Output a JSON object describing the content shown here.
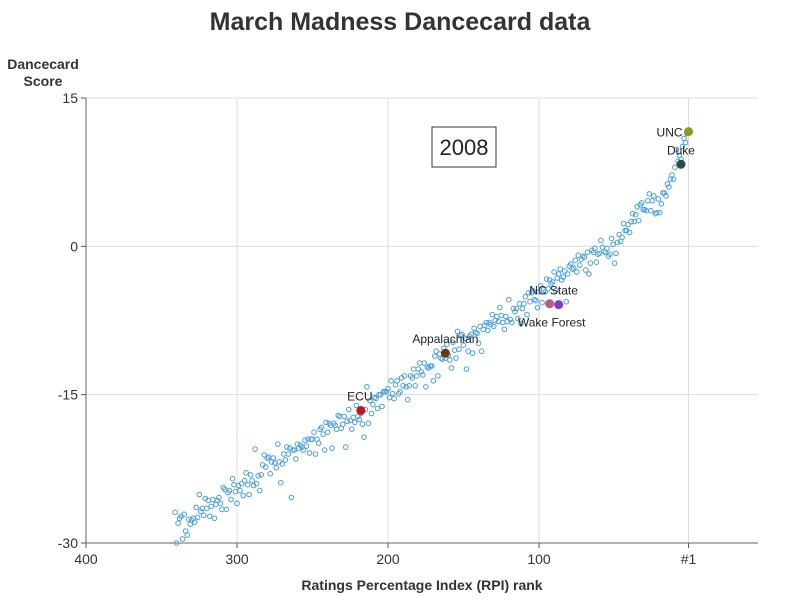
{
  "chart_data": {
    "type": "scatter",
    "title": "March Madness Dancecard data",
    "xlabel": "Ratings Percentage Index (RPI) rank",
    "ylabel_lines": [
      "Dancecard",
      "Score"
    ],
    "annotation": "2008",
    "xlim": [
      400,
      -45
    ],
    "ylim": [
      -30,
      15
    ],
    "x_ticks": [
      400,
      300,
      200,
      100,
      1
    ],
    "x_tick_labels": [
      "400",
      "300",
      "200",
      "100",
      "#1"
    ],
    "y_ticks": [
      15,
      0,
      -15,
      -30
    ],
    "y_tick_labels": [
      "15",
      "0",
      "-15",
      "-30"
    ],
    "grid": true,
    "point_color": "#4a9fe0",
    "points": [
      [
        341,
        -26.9
      ],
      [
        340,
        -30.0
      ],
      [
        339,
        -28.0
      ],
      [
        338,
        -27.5
      ],
      [
        337,
        -27.3
      ],
      [
        336,
        -29.6
      ],
      [
        335,
        -27.1
      ],
      [
        334,
        -28.8
      ],
      [
        333,
        -29.2
      ],
      [
        332,
        -27.6
      ],
      [
        331,
        -28.1
      ],
      [
        330,
        -27.7
      ],
      [
        329,
        -27.5
      ],
      [
        328,
        -27.9
      ],
      [
        327,
        -26.4
      ],
      [
        326,
        -27.4
      ],
      [
        325,
        -25.1
      ],
      [
        324,
        -26.8
      ],
      [
        323,
        -26.5
      ],
      [
        322,
        -27.2
      ],
      [
        321,
        -25.5
      ],
      [
        320,
        -26.5
      ],
      [
        319,
        -25.7
      ],
      [
        318,
        -27.3
      ],
      [
        317,
        -26.3
      ],
      [
        316,
        -25.6
      ],
      [
        315,
        -27.5
      ],
      [
        314,
        -26.1
      ],
      [
        313,
        -25.7
      ],
      [
        312,
        -25.4
      ],
      [
        311,
        -26.0
      ],
      [
        310,
        -26.6
      ],
      [
        309,
        -24.4
      ],
      [
        308,
        -24.6
      ],
      [
        307,
        -26.6
      ],
      [
        306,
        -24.9
      ],
      [
        305,
        -24.7
      ],
      [
        304,
        -25.6
      ],
      [
        303,
        -23.5
      ],
      [
        302,
        -24.1
      ],
      [
        301,
        -24.8
      ],
      [
        300,
        -26.0
      ],
      [
        299,
        -24.2
      ],
      [
        298,
        -24.7
      ],
      [
        297,
        -24.0
      ],
      [
        296,
        -25.2
      ],
      [
        295,
        -23.7
      ],
      [
        294,
        -22.9
      ],
      [
        293,
        -24.1
      ],
      [
        292,
        -25.1
      ],
      [
        291,
        -23.1
      ],
      [
        290,
        -23.7
      ],
      [
        289,
        -24.2
      ],
      [
        288,
        -20.5
      ],
      [
        287,
        -24.0
      ],
      [
        286,
        -23.2
      ],
      [
        285,
        -24.7
      ],
      [
        284,
        -23.1
      ],
      [
        283,
        -22.1
      ],
      [
        282,
        -21.1
      ],
      [
        281,
        -22.3
      ],
      [
        280,
        -21.4
      ],
      [
        279,
        -21.3
      ],
      [
        278,
        -23.0
      ],
      [
        277,
        -21.8
      ],
      [
        276,
        -21.4
      ],
      [
        275,
        -21.9
      ],
      [
        274,
        -22.4
      ],
      [
        273,
        -20.0
      ],
      [
        272,
        -21.8
      ],
      [
        271,
        -23.9
      ],
      [
        270,
        -22.0
      ],
      [
        269,
        -21.0
      ],
      [
        268,
        -21.6
      ],
      [
        267,
        -20.3
      ],
      [
        266,
        -21.0
      ],
      [
        265,
        -20.4
      ],
      [
        264,
        -25.4
      ],
      [
        263,
        -20.6
      ],
      [
        262,
        -20.6
      ],
      [
        261,
        -21.5
      ],
      [
        260,
        -20.0
      ],
      [
        259,
        -20.4
      ],
      [
        258,
        -20.1
      ],
      [
        257,
        -20.3
      ],
      [
        256,
        -20.6
      ],
      [
        255,
        -19.6
      ],
      [
        254,
        -20.2
      ],
      [
        253,
        -19.5
      ],
      [
        252,
        -20.9
      ],
      [
        251,
        -19.5
      ],
      [
        250,
        -19.5
      ],
      [
        249,
        -18.8
      ],
      [
        248,
        -21.0
      ],
      [
        247,
        -19.5
      ],
      [
        246,
        -19.9
      ],
      [
        245,
        -18.5
      ],
      [
        244,
        -18.3
      ],
      [
        243,
        -19.0
      ],
      [
        242,
        -20.6
      ],
      [
        241,
        -17.8
      ],
      [
        240,
        -18.8
      ],
      [
        239,
        -17.9
      ],
      [
        238,
        -18.1
      ],
      [
        237,
        -20.4
      ],
      [
        236,
        -17.9
      ],
      [
        235,
        -18.1
      ],
      [
        234,
        -18.5
      ],
      [
        233,
        -17.1
      ],
      [
        232,
        -17.2
      ],
      [
        231,
        -18.4
      ],
      [
        230,
        -18.0
      ],
      [
        229,
        -17.2
      ],
      [
        228,
        -20.3
      ],
      [
        227,
        -17.7
      ],
      [
        226,
        -16.5
      ],
      [
        225,
        -17.6
      ],
      [
        224,
        -18.5
      ],
      [
        223,
        -17.3
      ],
      [
        222,
        -17.8
      ],
      [
        221,
        -16.1
      ],
      [
        220,
        -17.2
      ],
      [
        219,
        -17.5
      ],
      [
        218,
        -16.9
      ],
      [
        217,
        -18.0
      ],
      [
        216,
        -19.3
      ],
      [
        215,
        -16.5
      ],
      [
        214,
        -14.2
      ],
      [
        213,
        -17.9
      ],
      [
        212,
        -15.6
      ],
      [
        211,
        -16.9
      ],
      [
        210,
        -16.0
      ],
      [
        209,
        -15.3
      ],
      [
        208,
        -15.4
      ],
      [
        207,
        -16.4
      ],
      [
        206,
        -15.0
      ],
      [
        205,
        -15.0
      ],
      [
        204,
        -16.2
      ],
      [
        203,
        -14.7
      ],
      [
        202,
        -14.7
      ],
      [
        201,
        -14.7
      ],
      [
        200,
        -14.4
      ],
      [
        199,
        -15.3
      ],
      [
        198,
        -13.6
      ],
      [
        197,
        -14.9
      ],
      [
        196,
        -15.4
      ],
      [
        195,
        -14.0
      ],
      [
        194,
        -13.6
      ],
      [
        193,
        -14.9
      ],
      [
        192,
        -14.7
      ],
      [
        191,
        -13.3
      ],
      [
        190,
        -14.1
      ],
      [
        189,
        -13.1
      ],
      [
        188,
        -14.2
      ],
      [
        187,
        -15.5
      ],
      [
        186,
        -14.1
      ],
      [
        185,
        -13.1
      ],
      [
        184,
        -13.3
      ],
      [
        183,
        -12.4
      ],
      [
        182,
        -14.1
      ],
      [
        181,
        -13.1
      ],
      [
        180,
        -12.4
      ],
      [
        179,
        -11.8
      ],
      [
        178,
        -12.7
      ],
      [
        177,
        -13.0
      ],
      [
        176,
        -11.8
      ],
      [
        175,
        -14.2
      ],
      [
        174,
        -12.2
      ],
      [
        173,
        -12.3
      ],
      [
        172,
        -12.1
      ],
      [
        171,
        -12.1
      ],
      [
        170,
        -13.6
      ],
      [
        169,
        -11.1
      ],
      [
        168,
        -10.6
      ],
      [
        167,
        -13.1
      ],
      [
        166,
        -10.9
      ],
      [
        165,
        -11.3
      ],
      [
        164,
        -11.4
      ],
      [
        163,
        -10.3
      ],
      [
        162,
        -11.3
      ],
      [
        161,
        -9.9
      ],
      [
        160,
        -11.0
      ],
      [
        159,
        -11.5
      ],
      [
        158,
        -12.3
      ],
      [
        157,
        -9.7
      ],
      [
        156,
        -10.5
      ],
      [
        155,
        -11.3
      ],
      [
        154,
        -8.6
      ],
      [
        153,
        -10.4
      ],
      [
        152,
        -9.0
      ],
      [
        151,
        -8.9
      ],
      [
        150,
        -10.0
      ],
      [
        149,
        -9.3
      ],
      [
        148,
        -12.4
      ],
      [
        147,
        -10.6
      ],
      [
        146,
        -9.1
      ],
      [
        145,
        -8.9
      ],
      [
        144,
        -10.8
      ],
      [
        143,
        -8.3
      ],
      [
        142,
        -8.7
      ],
      [
        141,
        -8.8
      ],
      [
        140,
        -9.8
      ],
      [
        139,
        -8.1
      ],
      [
        138,
        -10.6
      ],
      [
        137,
        -8.4
      ],
      [
        136,
        -8.0
      ],
      [
        135,
        -7.7
      ],
      [
        134,
        -8.5
      ],
      [
        133,
        -7.7
      ],
      [
        132,
        -7.9
      ],
      [
        131,
        -6.9
      ],
      [
        130,
        -8.1
      ],
      [
        129,
        -7.5
      ],
      [
        128,
        -7.1
      ],
      [
        127,
        -7.6
      ],
      [
        126,
        -6.2
      ],
      [
        125,
        -7.0
      ],
      [
        124,
        -7.7
      ],
      [
        123,
        -8.4
      ],
      [
        122,
        -7.1
      ],
      [
        121,
        -7.6
      ],
      [
        120,
        -5.4
      ],
      [
        119,
        -7.4
      ],
      [
        118,
        -7.7
      ],
      [
        117,
        -6.3
      ],
      [
        116,
        -6.6
      ],
      [
        115,
        -6.3
      ],
      [
        114,
        -7.3
      ],
      [
        113,
        -5.8
      ],
      [
        112,
        -7.8
      ],
      [
        111,
        -6.3
      ],
      [
        110,
        -5.8
      ],
      [
        109,
        -5.1
      ],
      [
        108,
        -6.9
      ],
      [
        107,
        -4.7
      ],
      [
        106,
        -5.6
      ],
      [
        105,
        -4.7
      ],
      [
        104,
        -4.5
      ],
      [
        103,
        -5.4
      ],
      [
        102,
        -5.5
      ],
      [
        101,
        -6.2
      ],
      [
        100,
        -4.6
      ],
      [
        99,
        -4.0
      ],
      [
        98,
        -5.7
      ],
      [
        97,
        -4.4
      ],
      [
        96,
        -4.6
      ],
      [
        95,
        -3.3
      ],
      [
        94,
        -4.3
      ],
      [
        93,
        -3.4
      ],
      [
        92,
        -3.8
      ],
      [
        91,
        -3.6
      ],
      [
        90,
        -2.6
      ],
      [
        89,
        -4.5
      ],
      [
        88,
        -3.2
      ],
      [
        87,
        -2.8
      ],
      [
        86,
        -2.3
      ],
      [
        85,
        -3.4
      ],
      [
        84,
        -3.1
      ],
      [
        83,
        -2.5
      ],
      [
        82,
        -5.6
      ],
      [
        81,
        -2.8
      ],
      [
        80,
        -2.0
      ],
      [
        79,
        -1.8
      ],
      [
        78,
        -2.3
      ],
      [
        77,
        -2.2
      ],
      [
        76,
        -1.4
      ],
      [
        75,
        -2.6
      ],
      [
        74,
        -0.9
      ],
      [
        73,
        -1.9
      ],
      [
        72,
        -1.3
      ],
      [
        71,
        -1.0
      ],
      [
        70,
        -1.1
      ],
      [
        69,
        -2.4
      ],
      [
        68,
        -0.6
      ],
      [
        67,
        -2.8
      ],
      [
        66,
        -1.7
      ],
      [
        65,
        -0.4
      ],
      [
        64,
        -0.6
      ],
      [
        63,
        -0.2
      ],
      [
        62,
        -1.6
      ],
      [
        61,
        -0.8
      ],
      [
        60,
        -0.7
      ],
      [
        59,
        0.6
      ],
      [
        58,
        -0.1
      ],
      [
        57,
        -0.5
      ],
      [
        56,
        -0.6
      ],
      [
        55,
        -0.2
      ],
      [
        54,
        -1.0
      ],
      [
        53,
        -0.8
      ],
      [
        52,
        0.8
      ],
      [
        51,
        0.2
      ],
      [
        50,
        -1.7
      ],
      [
        49,
        -0.7
      ],
      [
        48,
        0.4
      ],
      [
        47,
        1.2
      ],
      [
        46,
        0.5
      ],
      [
        45,
        0.9
      ],
      [
        44,
        2.3
      ],
      [
        43,
        1.6
      ],
      [
        42,
        1.6
      ],
      [
        41,
        2.2
      ],
      [
        40,
        1.4
      ],
      [
        39,
        2.5
      ],
      [
        38,
        3.3
      ],
      [
        37,
        2.5
      ],
      [
        36,
        3.2
      ],
      [
        35,
        4.0
      ],
      [
        34,
        2.6
      ],
      [
        33,
        4.2
      ],
      [
        32,
        4.4
      ],
      [
        31,
        3.7
      ],
      [
        30,
        3.7
      ],
      [
        29,
        3.6
      ],
      [
        28,
        4.6
      ],
      [
        27,
        5.3
      ],
      [
        26,
        3.6
      ],
      [
        25,
        4.6
      ],
      [
        24,
        5.1
      ],
      [
        23,
        3.3
      ],
      [
        22,
        3.4
      ],
      [
        21,
        4.8
      ],
      [
        20,
        3.4
      ],
      [
        19,
        4.3
      ],
      [
        18,
        5.4
      ],
      [
        17,
        5.4
      ],
      [
        16,
        5.1
      ],
      [
        15,
        6.3
      ],
      [
        14,
        6.0
      ],
      [
        13,
        6.8
      ],
      [
        12,
        7.2
      ],
      [
        11,
        6.8
      ],
      [
        10,
        8.0
      ],
      [
        9,
        9.8
      ],
      [
        8,
        8.6
      ],
      [
        7,
        9.2
      ],
      [
        6,
        8.8
      ],
      [
        5,
        10.1
      ],
      [
        4,
        10.9
      ],
      [
        3,
        10.5
      ],
      [
        2,
        11.4
      ]
    ],
    "teams": [
      {
        "name": "UNC",
        "x": 1,
        "y": 11.6,
        "color": "#8e9a1a",
        "label_side": "left"
      },
      {
        "name": "Duke",
        "x": 6,
        "y": 8.3,
        "color": "#2e4a4a",
        "label_side": "above"
      },
      {
        "name": "NC State",
        "x": 93,
        "y": -5.8,
        "color": "#c05890",
        "label_side": "above-right"
      },
      {
        "name": "Wake Forest",
        "x": 87,
        "y": -5.9,
        "color": "#8a3ac0",
        "label_side": "below"
      },
      {
        "name": "Appalachian",
        "x": 162,
        "y": -10.8,
        "color": "#6a3a14",
        "label_side": "above"
      },
      {
        "name": "ECU",
        "x": 218,
        "y": -16.6,
        "color": "#c8141c",
        "label_side": "above-left"
      }
    ]
  }
}
